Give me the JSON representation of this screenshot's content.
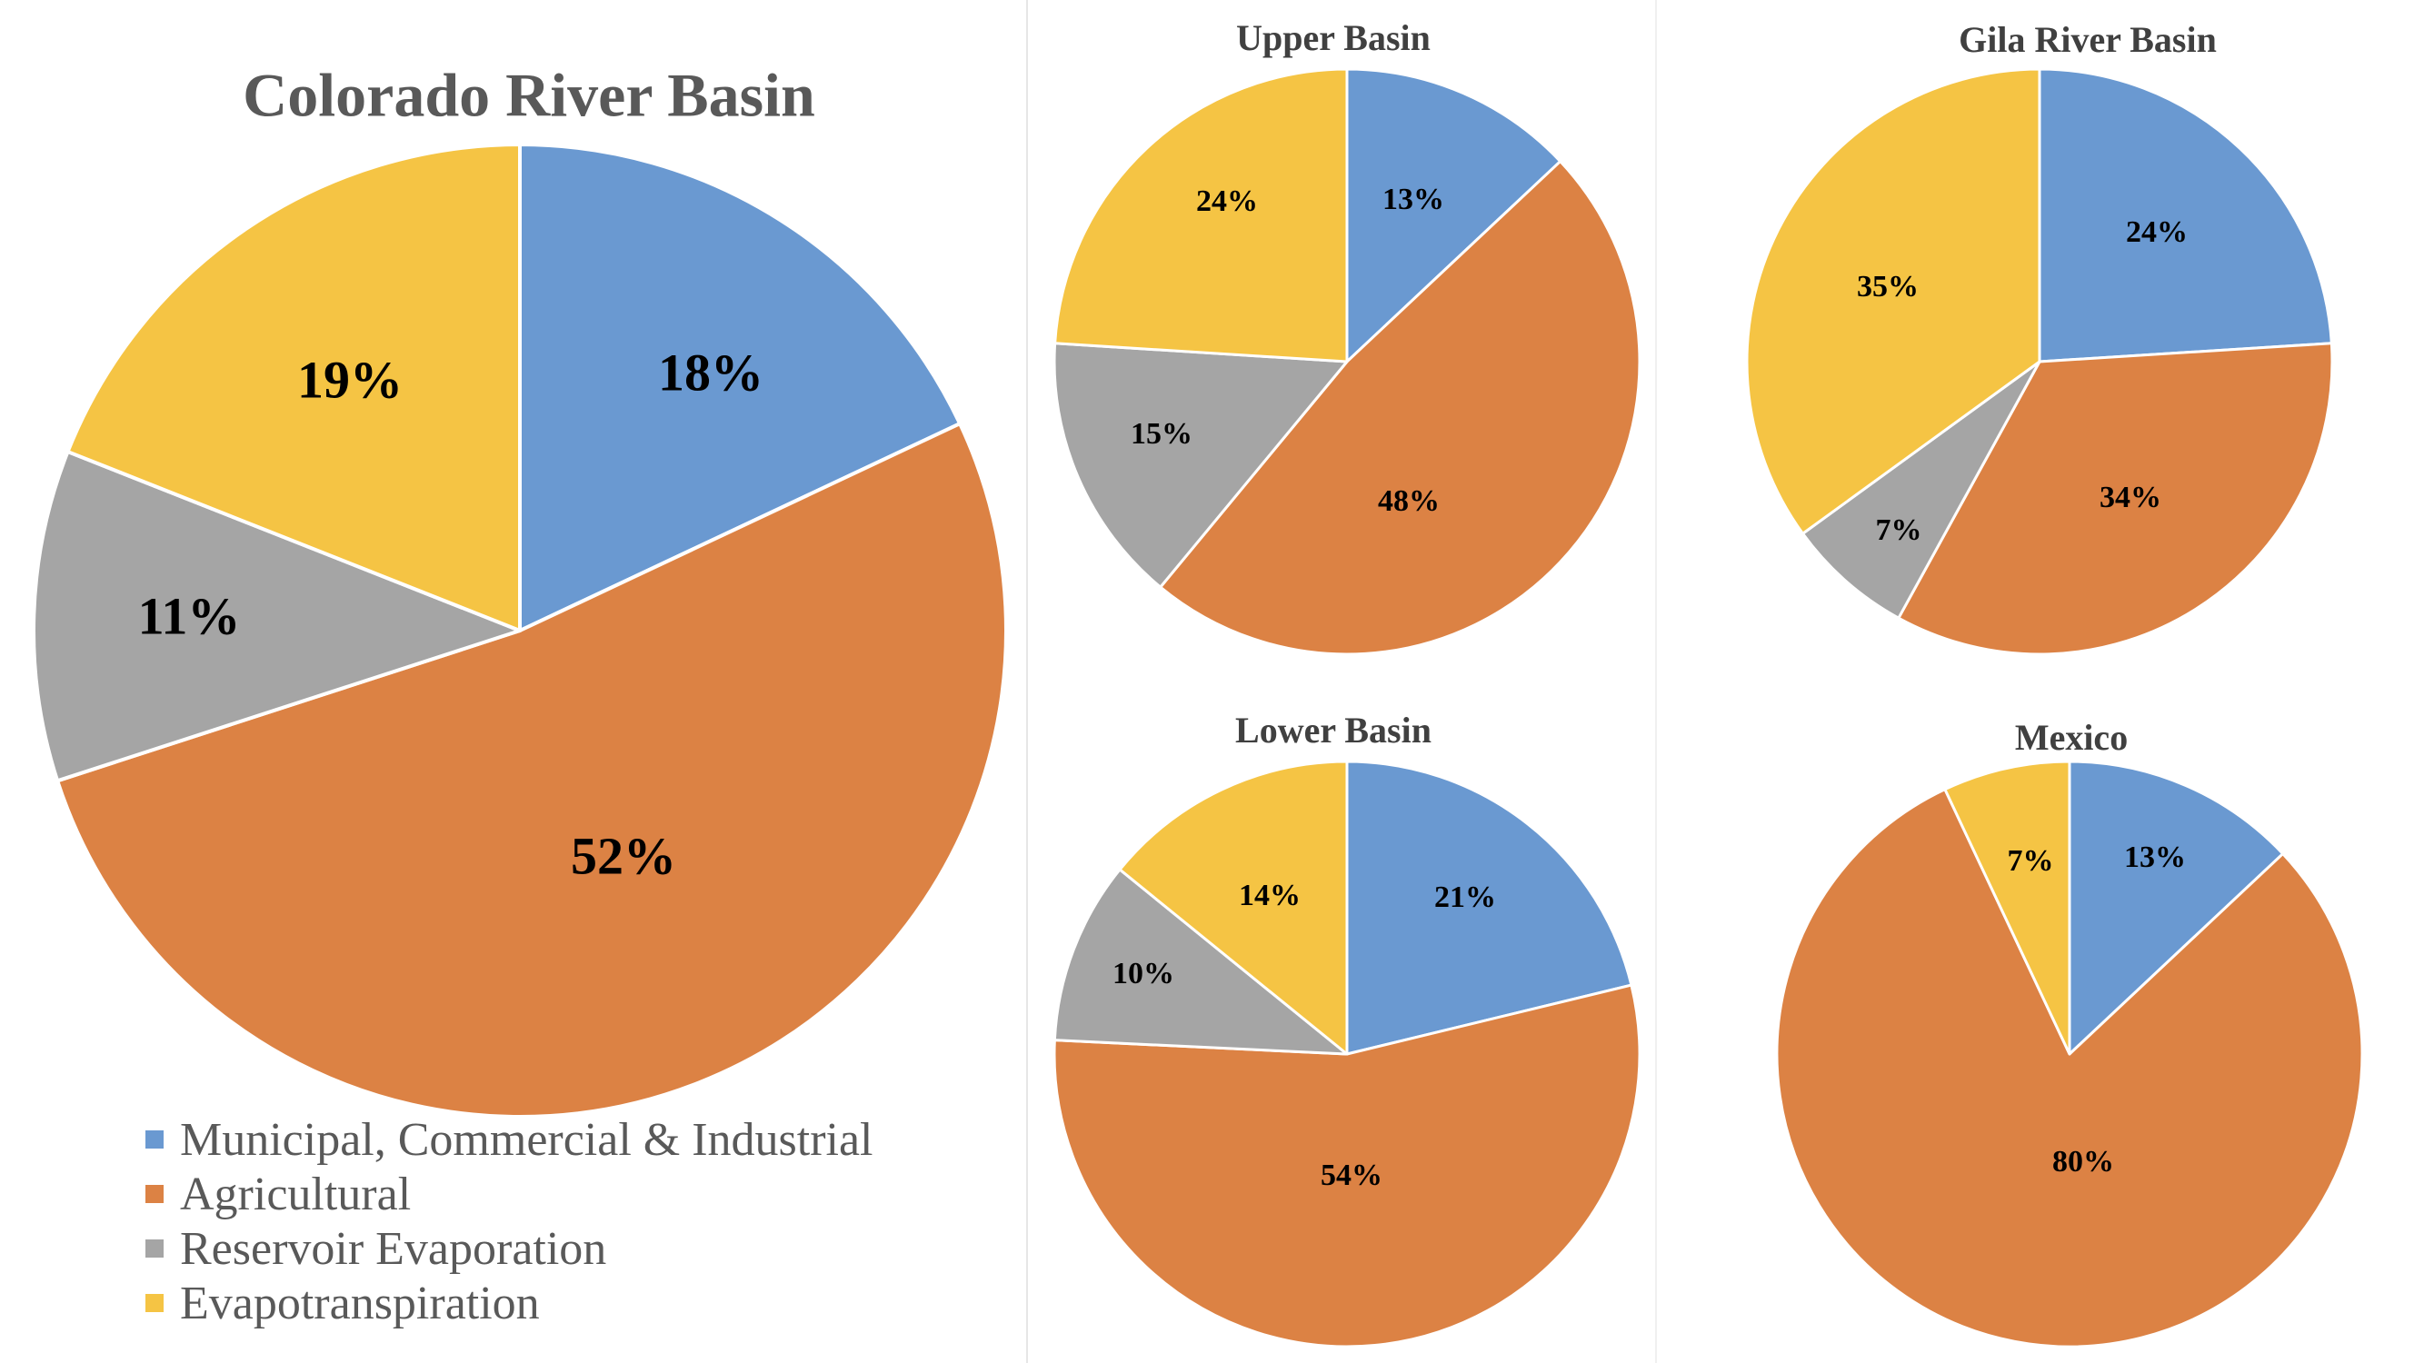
{
  "colors": {
    "municipal": "#6a99d1",
    "agricultural": "#dc8244",
    "reservoir": "#a5a5a5",
    "evapotranspiration": "#f5c444",
    "title_main": "#595959",
    "title_small": "#404040",
    "label": "#000000",
    "slice_border": "#ffffff"
  },
  "legend": {
    "items": [
      {
        "label": "Municipal, Commercial & Industrial",
        "color": "#6a99d1"
      },
      {
        "label": "Agricultural",
        "color": "#dc8244"
      },
      {
        "label": "Reservoir Evaporation",
        "color": "#a5a5a5"
      },
      {
        "label": "Evapotranspiration",
        "color": "#f5c444"
      }
    ]
  },
  "chart_data": [
    {
      "type": "pie",
      "title": "Colorado River Basin",
      "categories": [
        "Municipal, Commercial & Industrial",
        "Agricultural",
        "Reservoir Evaporation",
        "Evapotranspiration"
      ],
      "values": [
        18,
        52,
        11,
        19
      ],
      "labels": [
        "18%",
        "52%",
        "11%",
        "19%"
      ],
      "legend": "bottom-left"
    },
    {
      "type": "pie",
      "title": "Upper Basin",
      "categories": [
        "Municipal, Commercial & Industrial",
        "Agricultural",
        "Reservoir Evaporation",
        "Evapotranspiration"
      ],
      "values": [
        13,
        48,
        15,
        24
      ],
      "labels": [
        "13%",
        "48%",
        "15%",
        "24%"
      ]
    },
    {
      "type": "pie",
      "title": "Gila River Basin",
      "categories": [
        "Municipal, Commercial & Industrial",
        "Agricultural",
        "Reservoir Evaporation",
        "Evapotranspiration"
      ],
      "values": [
        24,
        34,
        7,
        35
      ],
      "labels": [
        "24%",
        "34%",
        "7%",
        "35%"
      ]
    },
    {
      "type": "pie",
      "title": "Lower Basin",
      "categories": [
        "Municipal, Commercial & Industrial",
        "Agricultural",
        "Reservoir Evaporation",
        "Evapotranspiration"
      ],
      "values": [
        21,
        54,
        10,
        14
      ],
      "labels": [
        "21%",
        "54%",
        "10%",
        "14%"
      ]
    },
    {
      "type": "pie",
      "title": "Mexico",
      "categories": [
        "Municipal, Commercial & Industrial",
        "Agricultural",
        "Evapotranspiration"
      ],
      "values": [
        13,
        80,
        7
      ],
      "labels": [
        "13%",
        "80%",
        "7%"
      ]
    }
  ]
}
